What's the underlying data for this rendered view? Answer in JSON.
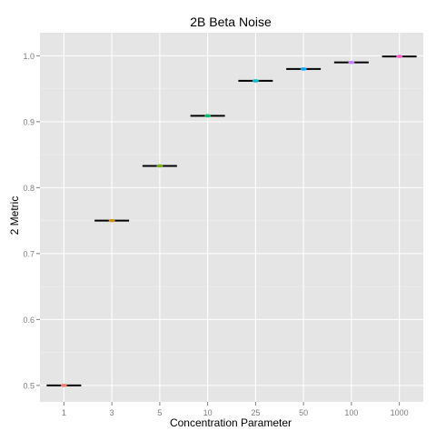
{
  "chart_data": {
    "type": "box",
    "title": "2B Beta Noise",
    "xlabel": "Concentration Parameter",
    "ylabel": "2 Metric",
    "categories": [
      "1",
      "3",
      "5",
      "10",
      "25",
      "50",
      "100",
      "1000"
    ],
    "values": [
      0.5,
      0.75,
      0.833,
      0.909,
      0.962,
      0.98,
      0.99,
      0.999
    ],
    "point_colors": [
      "#F8766D",
      "#CD9600",
      "#7CAE00",
      "#00BE67",
      "#00BFC4",
      "#00A9FF",
      "#C77CFF",
      "#FF61CC"
    ],
    "ylim": [
      0.475,
      1.035
    ],
    "yticks": [
      0.5,
      0.6,
      0.7,
      0.8,
      0.9,
      1.0
    ],
    "ytick_labels": [
      "0.5",
      "0.6",
      "0.7",
      "0.8",
      "0.9",
      "1.0"
    ],
    "grid": true,
    "legend": "none",
    "colors": {
      "panel_background": "#e5e5e5",
      "grid_major": "#ffffff",
      "grid_minor": "#f2f2f2",
      "median_line": "#000000",
      "tick_label": "#7f7f7f"
    }
  }
}
